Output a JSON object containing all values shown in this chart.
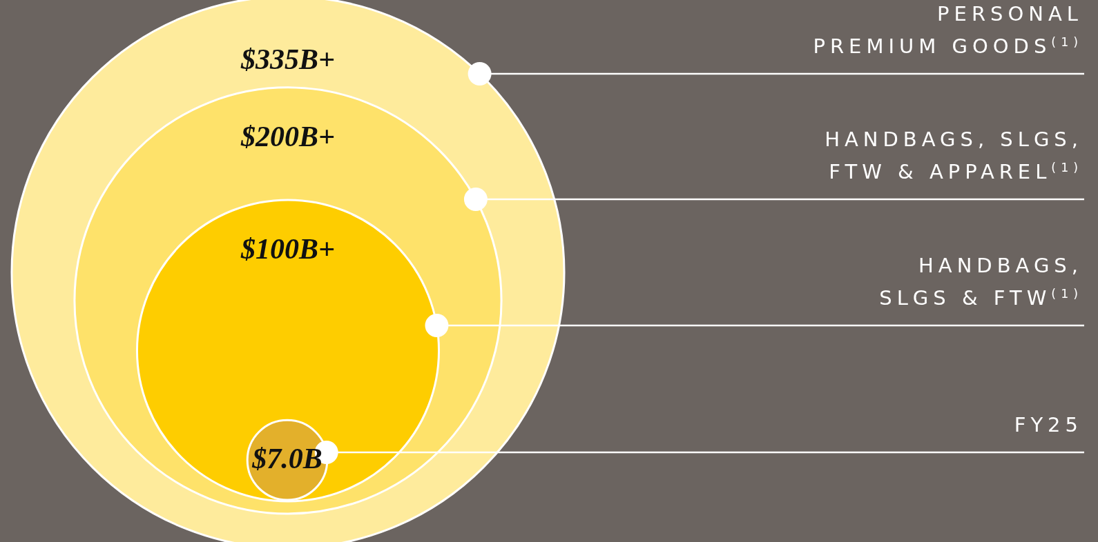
{
  "chart_data": {
    "type": "other",
    "categories": [
      "PERSONAL\nPREMIUM GOODS$^{(1)}$",
      "HANDBAGS, SLGS,\nFTW & APPAREL$^{(1)}$",
      "HANDBAGS,\nSLGS & FTW$^{(1)}$",
      "FY25"
    ],
    "values": [
      335,
      200,
      100,
      7.0
    ],
    "value_labels": [
      "$335B+",
      "$200B+",
      "$100B+",
      "$7.0B"
    ],
    "colors": [
      "#feeb9c",
      "#fee26a",
      "#fecd00",
      "#e3b02b"
    ]
  }
}
